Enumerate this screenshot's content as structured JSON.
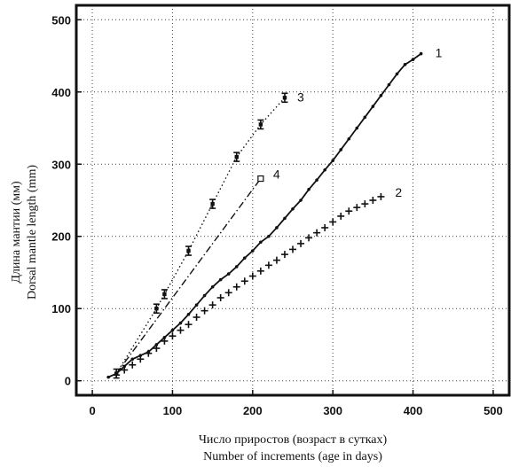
{
  "chart_data": {
    "type": "line",
    "title": "",
    "xlabel_ru": "Число приростов (возраст в сутках)",
    "xlabel_en": "Number of increments (age in days)",
    "ylabel_ru": "Длина мантии  (мм)",
    "ylabel_en": "Dorsal mantle length  (mm)",
    "xlim": [
      -20,
      520
    ],
    "ylim": [
      -20,
      520
    ],
    "x_ticks": [
      "0",
      "100",
      "200",
      "300",
      "400",
      "500"
    ],
    "y_ticks": [
      "0",
      "100",
      "200",
      "300",
      "400",
      "500"
    ],
    "grid": true,
    "legend": "none",
    "series": [
      {
        "name": "1",
        "style": "solid",
        "marker": "dot",
        "x": [
          20,
          30,
          40,
          50,
          60,
          70,
          80,
          90,
          100,
          110,
          120,
          130,
          140,
          150,
          160,
          170,
          180,
          190,
          200,
          210,
          220,
          230,
          240,
          250,
          260,
          270,
          280,
          290,
          300,
          310,
          320,
          330,
          340,
          350,
          360,
          370,
          380,
          390,
          400,
          410
        ],
        "y": [
          5,
          10,
          20,
          30,
          35,
          40,
          50,
          60,
          70,
          80,
          92,
          105,
          118,
          130,
          140,
          148,
          158,
          170,
          180,
          192,
          200,
          212,
          225,
          238,
          250,
          265,
          278,
          292,
          305,
          320,
          335,
          350,
          365,
          380,
          395,
          410,
          425,
          438,
          445,
          453
        ]
      },
      {
        "name": "2",
        "style": "markers",
        "marker": "plus",
        "x": [
          30,
          40,
          50,
          60,
          70,
          80,
          90,
          100,
          110,
          120,
          130,
          140,
          150,
          160,
          170,
          180,
          190,
          200,
          210,
          220,
          230,
          240,
          250,
          260,
          270,
          280,
          290,
          300,
          310,
          320,
          330,
          340,
          350,
          360
        ],
        "y": [
          8,
          15,
          22,
          30,
          38,
          45,
          55,
          62,
          70,
          78,
          88,
          97,
          105,
          115,
          122,
          130,
          138,
          145,
          152,
          160,
          167,
          175,
          182,
          190,
          198,
          205,
          212,
          220,
          228,
          235,
          240,
          245,
          250,
          255
        ]
      },
      {
        "name": "3",
        "style": "dotted",
        "marker": "errorbar",
        "x": [
          30,
          80,
          90,
          120,
          150,
          180,
          210,
          240
        ],
        "y": [
          10,
          100,
          120,
          180,
          245,
          310,
          355,
          392
        ]
      },
      {
        "name": "4",
        "style": "dashdot",
        "marker": "square",
        "x": [
          30,
          210
        ],
        "y": [
          10,
          280
        ]
      }
    ]
  }
}
